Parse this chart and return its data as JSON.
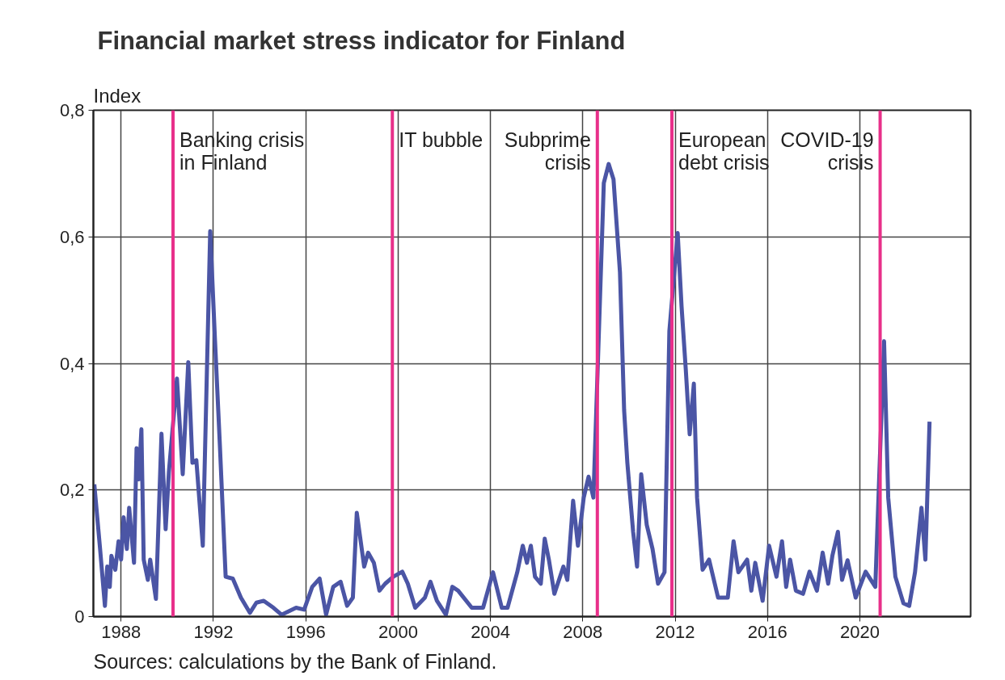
{
  "chart_data": {
    "type": "line",
    "title": "Financial market stress indicator for Finland",
    "ylabel": "Index",
    "x": [
      1986.84,
      1987.09,
      1987.3,
      1987.4,
      1987.51,
      1987.58,
      1987.75,
      1987.89,
      1988.0,
      1988.11,
      1988.25,
      1988.35,
      1988.56,
      1988.67,
      1988.77,
      1988.88,
      1988.98,
      1989.16,
      1989.26,
      1989.51,
      1989.75,
      1989.93,
      1990.07,
      1990.42,
      1990.67,
      1990.91,
      1991.09,
      1991.26,
      1991.54,
      1991.86,
      1992.07,
      1992.28,
      1992.53,
      1992.84,
      1993.19,
      1993.58,
      1993.86,
      1994.18,
      1994.6,
      1994.95,
      1995.58,
      1995.93,
      1996.28,
      1996.6,
      1996.88,
      1997.19,
      1997.51,
      1997.79,
      1998.04,
      1998.21,
      1998.53,
      1998.7,
      1998.95,
      1999.19,
      1999.44,
      1999.79,
      2000.18,
      2000.42,
      2000.74,
      2001.16,
      2001.4,
      2001.68,
      2002.07,
      2002.35,
      2002.6,
      2003.19,
      2003.68,
      2004.11,
      2004.49,
      2004.74,
      2005.16,
      2005.4,
      2005.58,
      2005.75,
      2005.93,
      2006.18,
      2006.35,
      2006.53,
      2006.77,
      2007.16,
      2007.33,
      2007.58,
      2007.79,
      2008.04,
      2008.25,
      2008.46,
      2008.91,
      2009.12,
      2009.33,
      2009.61,
      2009.79,
      2009.93,
      2010.18,
      2010.35,
      2010.53,
      2010.77,
      2011.02,
      2011.26,
      2011.54,
      2011.75,
      2012.11,
      2012.28,
      2012.46,
      2012.63,
      2012.81,
      2012.95,
      2013.19,
      2013.47,
      2013.86,
      2014.28,
      2014.53,
      2014.74,
      2015.12,
      2015.3,
      2015.47,
      2015.79,
      2016.07,
      2016.39,
      2016.63,
      2016.81,
      2016.98,
      2017.23,
      2017.54,
      2017.82,
      2018.14,
      2018.39,
      2018.63,
      2018.81,
      2019.05,
      2019.23,
      2019.47,
      2019.82,
      2020.25,
      2020.67,
      2021.05,
      2021.23,
      2021.54,
      2021.89,
      2022.14,
      2022.39,
      2022.67,
      2022.84,
      2023.02
    ],
    "series": [
      {
        "color": "#4b55a5",
        "values": [
          0.209,
          0.107,
          0.017,
          0.079,
          0.047,
          0.096,
          0.074,
          0.119,
          0.09,
          0.157,
          0.107,
          0.172,
          0.085,
          0.266,
          0.217,
          0.296,
          0.09,
          0.058,
          0.09,
          0.028,
          0.289,
          0.138,
          0.228,
          0.376,
          0.225,
          0.402,
          0.243,
          0.247,
          0.112,
          0.609,
          0.435,
          0.27,
          0.063,
          0.06,
          0.03,
          0.006,
          0.022,
          0.025,
          0.014,
          0.003,
          0.014,
          0.011,
          0.047,
          0.06,
          0.003,
          0.047,
          0.055,
          0.017,
          0.03,
          0.164,
          0.079,
          0.101,
          0.085,
          0.041,
          0.052,
          0.063,
          0.071,
          0.052,
          0.014,
          0.03,
          0.055,
          0.025,
          0.003,
          0.047,
          0.041,
          0.014,
          0.014,
          0.07,
          0.014,
          0.014,
          0.07,
          0.112,
          0.085,
          0.112,
          0.063,
          0.052,
          0.123,
          0.09,
          0.036,
          0.079,
          0.058,
          0.183,
          0.112,
          0.188,
          0.221,
          0.188,
          0.685,
          0.715,
          0.691,
          0.544,
          0.326,
          0.243,
          0.134,
          0.079,
          0.225,
          0.145,
          0.107,
          0.052,
          0.07,
          0.451,
          0.606,
          0.489,
          0.391,
          0.288,
          0.368,
          0.188,
          0.074,
          0.09,
          0.03,
          0.03,
          0.119,
          0.07,
          0.09,
          0.041,
          0.085,
          0.025,
          0.112,
          0.063,
          0.119,
          0.047,
          0.09,
          0.041,
          0.036,
          0.071,
          0.041,
          0.101,
          0.052,
          0.096,
          0.134,
          0.058,
          0.089,
          0.03,
          0.071,
          0.047,
          0.435,
          0.188,
          0.063,
          0.021,
          0.017,
          0.07,
          0.172,
          0.09,
          0.308
        ]
      }
    ],
    "xlim": [
      1986.8,
      2024.8
    ],
    "xticks": [
      1988,
      1992,
      1996,
      2000,
      2004,
      2008,
      2012,
      2016,
      2020
    ],
    "ylim": [
      0,
      0.8
    ],
    "yticks": [
      0,
      {
        "value": 0.2,
        "label": "0,2"
      },
      {
        "value": 0.4,
        "label": "0,4"
      },
      {
        "value": 0.6,
        "label": "0,6"
      },
      {
        "value": 0.8,
        "label": "0,8"
      }
    ],
    "grid": true,
    "line_style": "solid",
    "marker": "none",
    "ref_lines": [
      {
        "axis": "x",
        "value": 1990.25,
        "color": "#e8308a",
        "label": "Banking crisis\nin Finland"
      },
      {
        "axis": "x",
        "value": 1999.75,
        "color": "#e8308a",
        "label": "IT bubble"
      },
      {
        "axis": "x",
        "value": 2008.63,
        "color": "#e8308a",
        "label": "Subprime\ncrisis"
      },
      {
        "axis": "x",
        "value": 2011.86,
        "color": "#e8308a",
        "label": "European\ndebt crisis"
      },
      {
        "axis": "x",
        "value": 2020.88,
        "color": "#e8308a",
        "label": "COVID-19\ncrisis"
      }
    ],
    "annotations": [
      "Sources: calculations by the Bank of Finland."
    ]
  }
}
